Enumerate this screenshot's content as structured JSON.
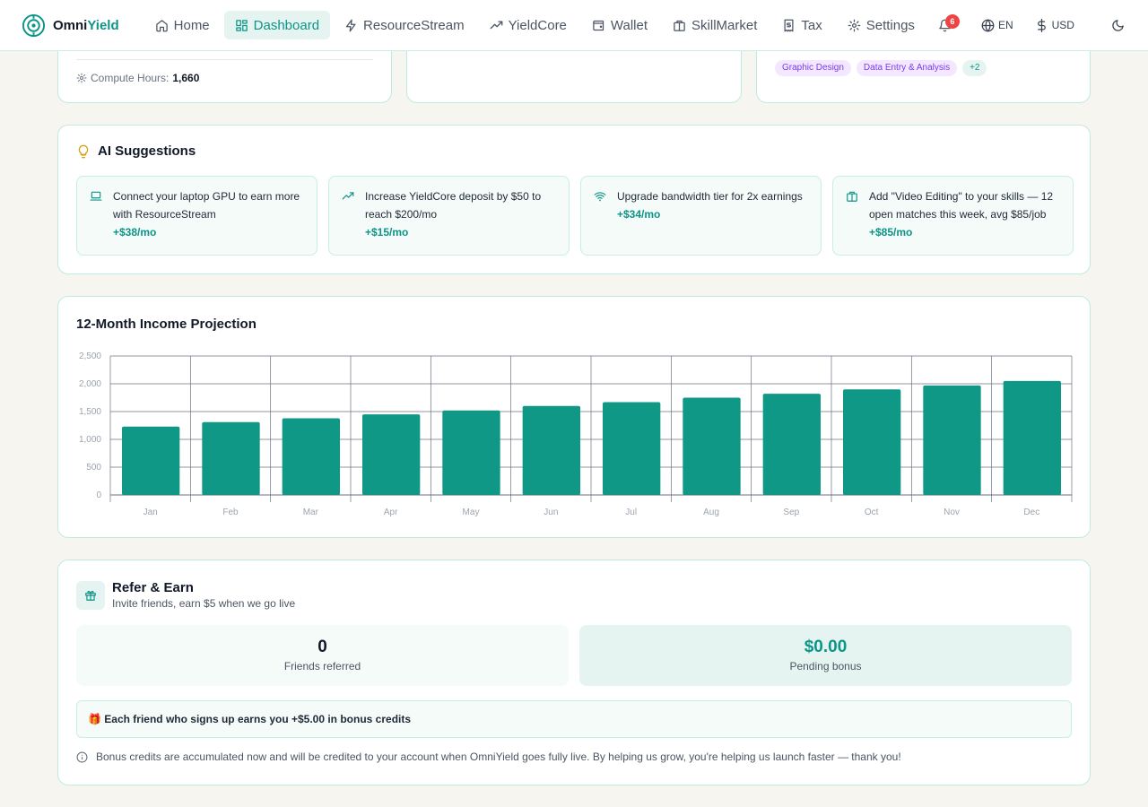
{
  "brand": {
    "name_part1": "Omni",
    "name_part2": "Yield"
  },
  "nav": {
    "items": [
      {
        "label": "Home",
        "icon": "home-icon"
      },
      {
        "label": "Dashboard",
        "icon": "dashboard-icon",
        "active": true
      },
      {
        "label": "ResourceStream",
        "icon": "stream-icon"
      },
      {
        "label": "YieldCore",
        "icon": "trending-up-icon"
      },
      {
        "label": "Wallet",
        "icon": "wallet-icon"
      },
      {
        "label": "SkillMarket",
        "icon": "store-icon"
      },
      {
        "label": "Tax",
        "icon": "receipt-icon"
      },
      {
        "label": "Settings",
        "icon": "gear-icon"
      }
    ],
    "notifications_count": "6",
    "language": "EN",
    "currency": "USD"
  },
  "resource_card": {
    "compute_label": "Compute Hours:",
    "compute_value": "1,660"
  },
  "skills_card": {
    "tags": [
      "Graphic Design",
      "Data Entry & Analysis"
    ],
    "more": "+2"
  },
  "suggestions": {
    "title": "AI Suggestions",
    "items": [
      {
        "text": "Connect your laptop GPU to earn more with ResourceStream",
        "gain": "+$38/mo",
        "icon": "laptop-icon"
      },
      {
        "text": "Increase YieldCore deposit by $50 to reach $200/mo",
        "gain": "+$15/mo",
        "icon": "trending-up-icon"
      },
      {
        "text": "Upgrade bandwidth tier for 2x earnings",
        "gain": "+$34/mo",
        "icon": "wifi-icon"
      },
      {
        "text": "Add \"Video Editing\" to your skills — 12 open matches this week, avg $85/job",
        "gain": "+$85/mo",
        "icon": "store-icon"
      }
    ]
  },
  "chart_data": {
    "type": "bar",
    "title": "12-Month Income Projection",
    "categories": [
      "Jan",
      "Feb",
      "Mar",
      "Apr",
      "May",
      "Jun",
      "Jul",
      "Aug",
      "Sep",
      "Oct",
      "Nov",
      "Dec"
    ],
    "values": [
      1230,
      1310,
      1380,
      1450,
      1520,
      1600,
      1670,
      1750,
      1820,
      1900,
      1970,
      2050
    ],
    "yticks": [
      "0",
      "500",
      "1,000",
      "1,500",
      "2,000",
      "2,500"
    ],
    "ylim": [
      0,
      2500
    ],
    "grid": true,
    "bar_color": "#0f9886"
  },
  "refer": {
    "title": "Refer & Earn",
    "subtitle": "Invite friends, earn $5 when we go live",
    "friends_value": "0",
    "friends_label": "Friends referred",
    "bonus_value": "$0.00",
    "bonus_label": "Pending bonus",
    "bonus_banner": "🎁 Each friend who signs up earns you +$5.00 in bonus credits",
    "note": "Bonus credits are accumulated now and will be credited to your account when OmniYield goes fully live. By helping us grow, you're helping us launch faster — thank you!"
  }
}
